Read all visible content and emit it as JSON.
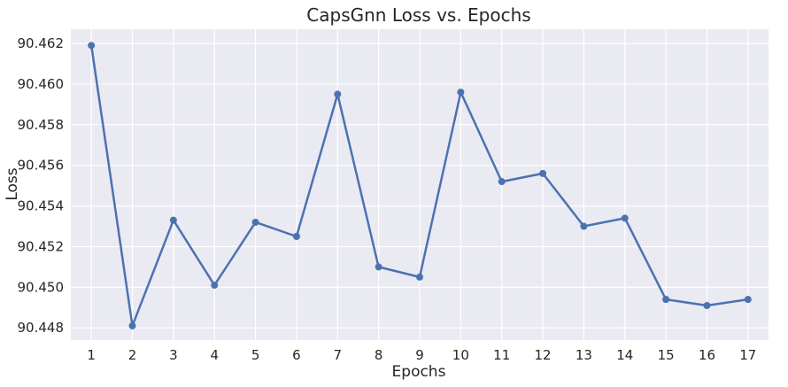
{
  "chart_data": {
    "type": "line",
    "title": "CapsGnn Loss vs. Epochs",
    "xlabel": "Epochs",
    "ylabel": "Loss",
    "x": [
      1,
      2,
      3,
      4,
      5,
      6,
      7,
      8,
      9,
      10,
      11,
      12,
      13,
      14,
      15,
      16,
      17
    ],
    "y_ticks": [
      "90.448",
      "90.450",
      "90.452",
      "90.454",
      "90.456",
      "90.458",
      "90.460",
      "90.462"
    ],
    "ylim": [
      90.4474,
      90.4627
    ],
    "grid": true,
    "series": [
      {
        "values": [
          90.4619,
          90.4481,
          90.4533,
          90.4501,
          90.4532,
          90.4525,
          90.4595,
          90.451,
          90.4505,
          90.4596,
          90.4552,
          90.4556,
          90.453,
          90.4534,
          90.4494,
          90.4491,
          90.4494
        ],
        "color": "#4c72b0"
      }
    ],
    "background_color": "#eaeaf2",
    "grid_color": "#ffffff"
  }
}
